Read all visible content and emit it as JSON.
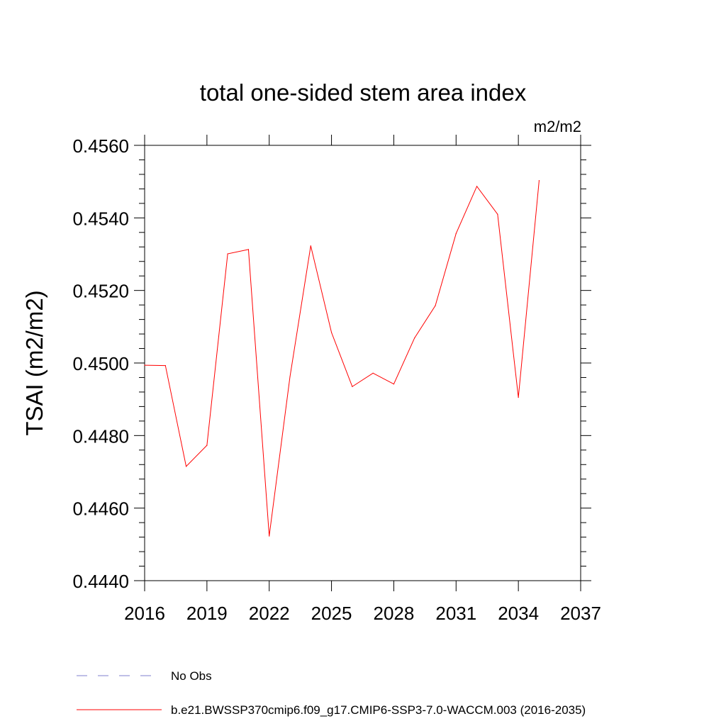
{
  "chart_data": {
    "type": "line",
    "title": "total one-sided stem area index",
    "units": "m2/m2",
    "ylabel": "TSAI  (m2/m2)",
    "xlabel": "",
    "xlim": [
      2016,
      2037
    ],
    "ylim": [
      0.444,
      0.456
    ],
    "xticks": [
      2016,
      2019,
      2022,
      2025,
      2028,
      2031,
      2034,
      2037
    ],
    "xtick_labels": [
      "2016",
      "2019",
      "2022",
      "2025",
      "2028",
      "2031",
      "2034",
      "2037"
    ],
    "yticks": [
      0.444,
      0.446,
      0.448,
      0.45,
      0.452,
      0.454,
      0.456
    ],
    "ytick_labels": [
      "0.4440",
      "0.4460",
      "0.4480",
      "0.4500",
      "0.4520",
      "0.4540",
      "0.4560"
    ],
    "grid": false,
    "series": [
      {
        "name": "b.e21.BWSSP370cmip6.f09_g17.CMIP6-SSP3-7.0-WACCM.003 (2016-2035)",
        "color": "#ff0000",
        "style": "solid",
        "x": [
          2016,
          2017,
          2018,
          2019,
          2020,
          2021,
          2022,
          2023,
          2024,
          2025,
          2026,
          2027,
          2028,
          2029,
          2030,
          2031,
          2032,
          2033,
          2034,
          2035
        ],
        "y": [
          0.44994,
          0.44993,
          0.44715,
          0.44773,
          0.45301,
          0.45313,
          0.44523,
          0.44962,
          0.45323,
          0.45084,
          0.44935,
          0.44972,
          0.44942,
          0.45069,
          0.45158,
          0.45357,
          0.45487,
          0.4541,
          0.44905,
          0.45503
        ]
      }
    ],
    "legend": {
      "placement": "bottom",
      "entries": [
        {
          "label": "No Obs",
          "color": "#7f7fcf",
          "style": "dashed"
        },
        {
          "label": "b.e21.BWSSP370cmip6.f09_g17.CMIP6-SSP3-7.0-WACCM.003 (2016-2035)",
          "color": "#ff0000",
          "style": "solid"
        }
      ]
    }
  }
}
